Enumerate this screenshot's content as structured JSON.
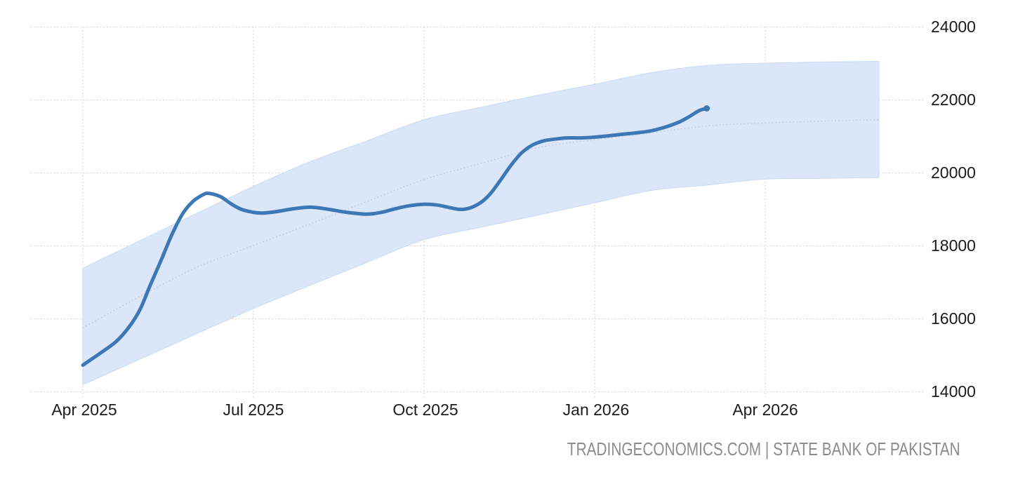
{
  "chart": {
    "y_axis": {
      "tick_labels": [
        "24000",
        "22000",
        "20000",
        "18000",
        "16000",
        "14000"
      ]
    },
    "x_axis": {
      "tick_labels": [
        "Apr 2025",
        "Jul 2025",
        "Oct 2025",
        "Jan 2026",
        "Apr 2026"
      ]
    },
    "attribution": "TRADINGECONOMICS.COM | STATE BANK OF PAKISTAN"
  },
  "colors": {
    "actual_line": "#3c78b5",
    "band_fill": "#dbe7f8",
    "band_edge": "#c9dbf3",
    "trend_line": "#bfc5cd",
    "grid": "#cdcdcd",
    "axis_text": "#1b1b1b",
    "attribution_text": "#8c8c8c"
  },
  "chart_data": {
    "type": "line",
    "title": "",
    "provider": "TRADINGECONOMICS.COM",
    "source": "STATE BANK OF PAKISTAN",
    "x_unit": "months since Apr 2025",
    "ylim": [
      14000,
      24000
    ],
    "y_ticks": [
      24000,
      22000,
      20000,
      18000,
      16000,
      14000
    ],
    "x_tick_months": [
      0,
      3,
      6,
      9,
      12
    ],
    "x_tick_labels": [
      "Apr 2025",
      "Jul 2025",
      "Oct 2025",
      "Jan 2026",
      "Apr 2026"
    ],
    "grid": "dotted",
    "legend": "none",
    "y_axis_side": "right",
    "months": [
      "Apr 2025",
      "May 2025",
      "Jun 2025",
      "Jul 2025",
      "Aug 2025",
      "Sep 2025",
      "Oct 2025",
      "Nov 2025",
      "Dec 2025",
      "Jan 2026",
      "Feb 2026",
      "Mar 2026",
      "Apr 2026",
      "May 2026",
      "Jun 2026"
    ],
    "series": [
      {
        "name": "actual",
        "style": "solid",
        "color": "#3c78b5",
        "points": [
          [
            0.0,
            14730
          ],
          [
            0.27,
            15020
          ],
          [
            0.58,
            15370
          ],
          [
            0.82,
            15790
          ],
          [
            1.01,
            16270
          ],
          [
            1.19,
            16940
          ],
          [
            1.38,
            17620
          ],
          [
            1.56,
            18290
          ],
          [
            1.75,
            18870
          ],
          [
            1.93,
            19210
          ],
          [
            2.11,
            19400
          ],
          [
            2.21,
            19440
          ],
          [
            2.42,
            19350
          ],
          [
            2.61,
            19150
          ],
          [
            2.79,
            19000
          ],
          [
            3.0,
            18920
          ],
          [
            3.16,
            18900
          ],
          [
            3.41,
            18940
          ],
          [
            3.71,
            19020
          ],
          [
            4.02,
            19060
          ],
          [
            4.33,
            19000
          ],
          [
            4.64,
            18920
          ],
          [
            5.0,
            18870
          ],
          [
            5.25,
            18920
          ],
          [
            5.5,
            19020
          ],
          [
            5.74,
            19100
          ],
          [
            5.99,
            19140
          ],
          [
            6.23,
            19120
          ],
          [
            6.42,
            19060
          ],
          [
            6.63,
            19000
          ],
          [
            6.81,
            19040
          ],
          [
            7.0,
            19190
          ],
          [
            7.16,
            19420
          ],
          [
            7.34,
            19790
          ],
          [
            7.52,
            20190
          ],
          [
            7.71,
            20540
          ],
          [
            7.89,
            20750
          ],
          [
            8.08,
            20870
          ],
          [
            8.26,
            20920
          ],
          [
            8.51,
            20960
          ],
          [
            8.75,
            20960
          ],
          [
            9.0,
            20980
          ],
          [
            9.25,
            21020
          ],
          [
            9.49,
            21060
          ],
          [
            9.74,
            21100
          ],
          [
            9.98,
            21150
          ],
          [
            10.23,
            21250
          ],
          [
            10.48,
            21390
          ],
          [
            10.66,
            21540
          ],
          [
            10.84,
            21710
          ],
          [
            10.97,
            21770
          ]
        ]
      },
      {
        "name": "forecast-trend",
        "style": "dotted",
        "color": "#bfc5cd",
        "values_by_month": [
          15750,
          16610,
          17410,
          18010,
          18600,
          19220,
          19820,
          20260,
          20690,
          20910,
          21100,
          21290,
          21370,
          21420,
          21460
        ]
      }
    ],
    "forecast_band": {
      "top_by_month": [
        17390,
        18140,
        18890,
        19630,
        20310,
        20880,
        21460,
        21800,
        22130,
        22430,
        22750,
        22950,
        23010,
        23040,
        23060
      ],
      "bottom_by_month": [
        14190,
        14890,
        15590,
        16280,
        16920,
        17550,
        18170,
        18510,
        18840,
        19180,
        19520,
        19670,
        19830,
        19850,
        19870
      ]
    }
  }
}
